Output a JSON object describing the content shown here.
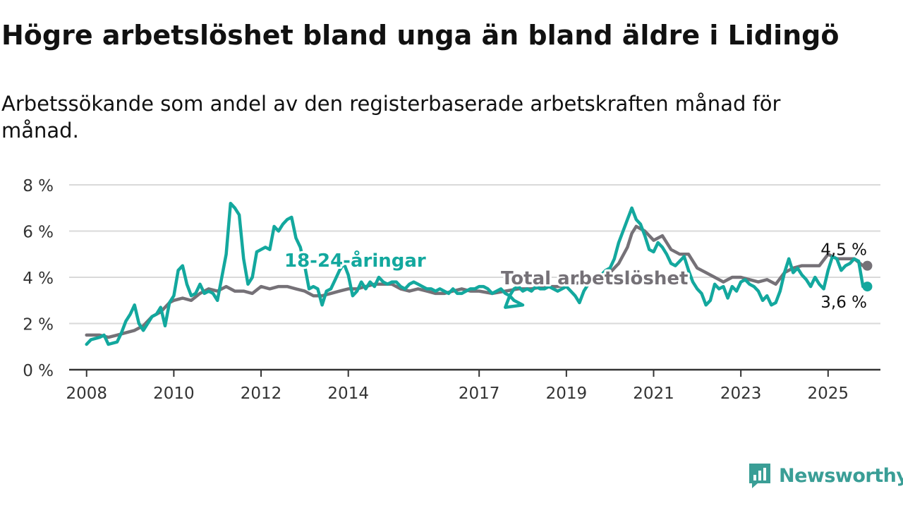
{
  "title": "Högre arbetslöshet bland unga än bland äldre i Lidingö",
  "subtitle": "Arbetssökande som andel av den registerbaserade arbetskraften månad för månad.",
  "brand": {
    "name": "Newsworthy",
    "icon": "newsworthy-logo-icon"
  },
  "colors": {
    "youth": "#13a89e",
    "total": "#757177",
    "grid": "#d9d9d9",
    "axis": "#333333",
    "brand": "#3a9e96"
  },
  "chart_data": {
    "type": "line",
    "ylim": [
      0,
      8
    ],
    "xlim": [
      2007.6,
      2026.2
    ],
    "grid": true,
    "y_ticks": [
      0,
      2,
      4,
      6,
      8
    ],
    "y_tick_labels": [
      "0 %",
      "2 %",
      "4 %",
      "6 %",
      "8 %"
    ],
    "x_ticks": [
      2008,
      2010,
      2012,
      2014,
      2017,
      2019,
      2021,
      2023,
      2025
    ],
    "x_tick_labels": [
      "2008",
      "2010",
      "2012",
      "2014",
      "2017",
      "2019",
      "2021",
      "2023",
      "2025"
    ],
    "end_labels": {
      "youth": "3,6 %",
      "total": "4,5 %"
    },
    "series": [
      {
        "id": "youth",
        "name": "18-24-åringar",
        "points": [
          [
            2008.0,
            1.1
          ],
          [
            2008.1,
            1.3
          ],
          [
            2008.3,
            1.4
          ],
          [
            2008.4,
            1.5
          ],
          [
            2008.5,
            1.1
          ],
          [
            2008.7,
            1.2
          ],
          [
            2008.8,
            1.6
          ],
          [
            2008.9,
            2.1
          ],
          [
            2009.0,
            2.4
          ],
          [
            2009.1,
            2.8
          ],
          [
            2009.2,
            2.0
          ],
          [
            2009.3,
            1.7
          ],
          [
            2009.4,
            2.0
          ],
          [
            2009.5,
            2.3
          ],
          [
            2009.6,
            2.4
          ],
          [
            2009.7,
            2.7
          ],
          [
            2009.8,
            1.9
          ],
          [
            2009.9,
            2.9
          ],
          [
            2010.0,
            3.2
          ],
          [
            2010.1,
            4.3
          ],
          [
            2010.2,
            4.5
          ],
          [
            2010.3,
            3.7
          ],
          [
            2010.4,
            3.2
          ],
          [
            2010.5,
            3.3
          ],
          [
            2010.6,
            3.7
          ],
          [
            2010.7,
            3.3
          ],
          [
            2010.8,
            3.4
          ],
          [
            2010.9,
            3.3
          ],
          [
            2011.0,
            3.0
          ],
          [
            2011.1,
            4.0
          ],
          [
            2011.2,
            5.0
          ],
          [
            2011.3,
            7.2
          ],
          [
            2011.4,
            7.0
          ],
          [
            2011.5,
            6.7
          ],
          [
            2011.6,
            4.8
          ],
          [
            2011.7,
            3.7
          ],
          [
            2011.8,
            4.0
          ],
          [
            2011.9,
            5.1
          ],
          [
            2012.0,
            5.2
          ],
          [
            2012.1,
            5.3
          ],
          [
            2012.2,
            5.2
          ],
          [
            2012.3,
            6.2
          ],
          [
            2012.4,
            6.0
          ],
          [
            2012.5,
            6.3
          ],
          [
            2012.6,
            6.5
          ],
          [
            2012.7,
            6.6
          ],
          [
            2012.8,
            5.7
          ],
          [
            2012.9,
            5.3
          ],
          [
            2013.0,
            4.5
          ],
          [
            2013.1,
            3.5
          ],
          [
            2013.2,
            3.6
          ],
          [
            2013.3,
            3.5
          ],
          [
            2013.4,
            2.8
          ],
          [
            2013.5,
            3.4
          ],
          [
            2013.6,
            3.5
          ],
          [
            2013.7,
            3.9
          ],
          [
            2013.8,
            4.3
          ],
          [
            2013.9,
            4.6
          ],
          [
            2014.0,
            4.1
          ],
          [
            2014.1,
            3.2
          ],
          [
            2014.2,
            3.4
          ],
          [
            2014.3,
            3.8
          ],
          [
            2014.4,
            3.5
          ],
          [
            2014.5,
            3.8
          ],
          [
            2014.6,
            3.6
          ],
          [
            2014.7,
            4.0
          ],
          [
            2014.8,
            3.8
          ],
          [
            2014.9,
            3.7
          ],
          [
            2015.0,
            3.8
          ],
          [
            2015.1,
            3.8
          ],
          [
            2015.2,
            3.6
          ],
          [
            2015.3,
            3.5
          ],
          [
            2015.4,
            3.7
          ],
          [
            2015.5,
            3.8
          ],
          [
            2015.6,
            3.7
          ],
          [
            2015.7,
            3.6
          ],
          [
            2015.8,
            3.5
          ],
          [
            2015.9,
            3.5
          ],
          [
            2016.0,
            3.4
          ],
          [
            2016.1,
            3.5
          ],
          [
            2016.2,
            3.4
          ],
          [
            2016.3,
            3.3
          ],
          [
            2016.4,
            3.5
          ],
          [
            2016.5,
            3.3
          ],
          [
            2016.6,
            3.3
          ],
          [
            2016.7,
            3.4
          ],
          [
            2016.8,
            3.5
          ],
          [
            2016.9,
            3.5
          ],
          [
            2017.0,
            3.6
          ],
          [
            2017.1,
            3.6
          ],
          [
            2017.2,
            3.5
          ],
          [
            2017.3,
            3.3
          ],
          [
            2017.4,
            3.4
          ],
          [
            2017.5,
            3.5
          ],
          [
            2017.6,
            3.3
          ],
          [
            2017.7,
            3.2
          ],
          [
            2017.8,
            3.0
          ],
          [
            2017.9,
            2.9
          ],
          [
            2018.0,
            2.8
          ],
          [
            2017.6,
            2.7
          ],
          [
            2017.7,
            3.2
          ],
          [
            2017.8,
            3.5
          ],
          [
            2017.9,
            3.6
          ],
          [
            2018.0,
            3.4
          ],
          [
            2018.1,
            3.5
          ],
          [
            2018.2,
            3.4
          ],
          [
            2018.3,
            3.6
          ],
          [
            2018.4,
            3.5
          ],
          [
            2018.5,
            3.5
          ],
          [
            2018.6,
            3.6
          ],
          [
            2018.7,
            3.5
          ],
          [
            2018.8,
            3.4
          ],
          [
            2018.9,
            3.5
          ],
          [
            2019.0,
            3.6
          ],
          [
            2019.1,
            3.4
          ],
          [
            2019.2,
            3.2
          ],
          [
            2019.3,
            2.9
          ],
          [
            2019.4,
            3.4
          ],
          [
            2019.5,
            3.7
          ],
          [
            2019.6,
            3.8
          ],
          [
            2019.7,
            3.9
          ],
          [
            2019.8,
            4.1
          ],
          [
            2019.9,
            4.3
          ],
          [
            2020.0,
            4.4
          ],
          [
            2020.1,
            4.8
          ],
          [
            2020.2,
            5.5
          ],
          [
            2020.3,
            6.0
          ],
          [
            2020.4,
            6.5
          ],
          [
            2020.5,
            7.0
          ],
          [
            2020.6,
            6.5
          ],
          [
            2020.7,
            6.3
          ],
          [
            2020.8,
            5.8
          ],
          [
            2020.9,
            5.2
          ],
          [
            2021.0,
            5.1
          ],
          [
            2021.1,
            5.5
          ],
          [
            2021.2,
            5.3
          ],
          [
            2021.3,
            5.0
          ],
          [
            2021.4,
            4.6
          ],
          [
            2021.5,
            4.5
          ],
          [
            2021.6,
            4.7
          ],
          [
            2021.7,
            4.9
          ],
          [
            2021.8,
            4.3
          ],
          [
            2021.9,
            3.8
          ],
          [
            2022.0,
            3.5
          ],
          [
            2022.1,
            3.3
          ],
          [
            2022.2,
            2.8
          ],
          [
            2022.3,
            3.0
          ],
          [
            2022.4,
            3.7
          ],
          [
            2022.5,
            3.5
          ],
          [
            2022.6,
            3.6
          ],
          [
            2022.7,
            3.1
          ],
          [
            2022.8,
            3.6
          ],
          [
            2022.9,
            3.4
          ],
          [
            2023.0,
            3.8
          ],
          [
            2023.1,
            3.9
          ],
          [
            2023.2,
            3.7
          ],
          [
            2023.3,
            3.6
          ],
          [
            2023.4,
            3.4
          ],
          [
            2023.5,
            3.0
          ],
          [
            2023.6,
            3.2
          ],
          [
            2023.7,
            2.8
          ],
          [
            2023.8,
            2.9
          ],
          [
            2023.9,
            3.4
          ],
          [
            2024.0,
            4.2
          ],
          [
            2024.1,
            4.8
          ],
          [
            2024.2,
            4.2
          ],
          [
            2024.3,
            4.4
          ],
          [
            2024.4,
            4.1
          ],
          [
            2024.5,
            3.9
          ],
          [
            2024.6,
            3.6
          ],
          [
            2024.7,
            4.0
          ],
          [
            2024.8,
            3.7
          ],
          [
            2024.9,
            3.5
          ],
          [
            2025.0,
            4.3
          ],
          [
            2025.1,
            4.9
          ],
          [
            2025.2,
            4.8
          ],
          [
            2025.3,
            4.3
          ],
          [
            2025.4,
            4.5
          ],
          [
            2025.5,
            4.6
          ],
          [
            2025.6,
            4.8
          ],
          [
            2025.7,
            4.7
          ],
          [
            2025.8,
            3.6
          ],
          [
            2025.9,
            3.6
          ]
        ]
      },
      {
        "id": "total",
        "name": "Total arbetslöshet",
        "points": [
          [
            2008.0,
            1.5
          ],
          [
            2008.3,
            1.5
          ],
          [
            2008.5,
            1.4
          ],
          [
            2008.7,
            1.5
          ],
          [
            2008.9,
            1.6
          ],
          [
            2009.1,
            1.7
          ],
          [
            2009.3,
            1.9
          ],
          [
            2009.5,
            2.3
          ],
          [
            2009.7,
            2.5
          ],
          [
            2009.9,
            2.9
          ],
          [
            2010.0,
            3.0
          ],
          [
            2010.2,
            3.1
          ],
          [
            2010.4,
            3.0
          ],
          [
            2010.6,
            3.3
          ],
          [
            2010.8,
            3.5
          ],
          [
            2011.0,
            3.4
          ],
          [
            2011.2,
            3.6
          ],
          [
            2011.4,
            3.4
          ],
          [
            2011.6,
            3.4
          ],
          [
            2011.8,
            3.3
          ],
          [
            2012.0,
            3.6
          ],
          [
            2012.2,
            3.5
          ],
          [
            2012.4,
            3.6
          ],
          [
            2012.6,
            3.6
          ],
          [
            2012.8,
            3.5
          ],
          [
            2013.0,
            3.4
          ],
          [
            2013.2,
            3.2
          ],
          [
            2013.4,
            3.2
          ],
          [
            2013.6,
            3.3
          ],
          [
            2013.8,
            3.4
          ],
          [
            2014.0,
            3.5
          ],
          [
            2014.2,
            3.5
          ],
          [
            2014.4,
            3.6
          ],
          [
            2014.6,
            3.7
          ],
          [
            2014.8,
            3.7
          ],
          [
            2015.0,
            3.7
          ],
          [
            2015.2,
            3.5
          ],
          [
            2015.4,
            3.4
          ],
          [
            2015.6,
            3.5
          ],
          [
            2015.8,
            3.4
          ],
          [
            2016.0,
            3.3
          ],
          [
            2016.2,
            3.3
          ],
          [
            2016.4,
            3.4
          ],
          [
            2016.6,
            3.5
          ],
          [
            2016.8,
            3.4
          ],
          [
            2017.0,
            3.4
          ],
          [
            2017.3,
            3.3
          ],
          [
            2017.6,
            3.4
          ],
          [
            2017.9,
            3.5
          ],
          [
            2018.2,
            3.5
          ],
          [
            2018.5,
            3.6
          ],
          [
            2018.8,
            3.6
          ],
          [
            2019.1,
            3.7
          ],
          [
            2019.4,
            3.8
          ],
          [
            2019.7,
            3.9
          ],
          [
            2020.0,
            4.2
          ],
          [
            2020.2,
            4.6
          ],
          [
            2020.4,
            5.3
          ],
          [
            2020.5,
            5.9
          ],
          [
            2020.6,
            6.2
          ],
          [
            2020.8,
            6.0
          ],
          [
            2021.0,
            5.6
          ],
          [
            2021.2,
            5.8
          ],
          [
            2021.4,
            5.2
          ],
          [
            2021.6,
            5.0
          ],
          [
            2021.8,
            5.0
          ],
          [
            2022.0,
            4.4
          ],
          [
            2022.2,
            4.2
          ],
          [
            2022.4,
            4.0
          ],
          [
            2022.6,
            3.8
          ],
          [
            2022.8,
            4.0
          ],
          [
            2023.0,
            4.0
          ],
          [
            2023.2,
            3.9
          ],
          [
            2023.4,
            3.8
          ],
          [
            2023.6,
            3.9
          ],
          [
            2023.8,
            3.7
          ],
          [
            2024.0,
            4.2
          ],
          [
            2024.2,
            4.4
          ],
          [
            2024.4,
            4.5
          ],
          [
            2024.6,
            4.5
          ],
          [
            2024.8,
            4.5
          ],
          [
            2025.0,
            5.0
          ],
          [
            2025.2,
            4.8
          ],
          [
            2025.4,
            4.8
          ],
          [
            2025.6,
            4.8
          ],
          [
            2025.8,
            4.5
          ],
          [
            2025.9,
            4.5
          ]
        ]
      }
    ]
  }
}
